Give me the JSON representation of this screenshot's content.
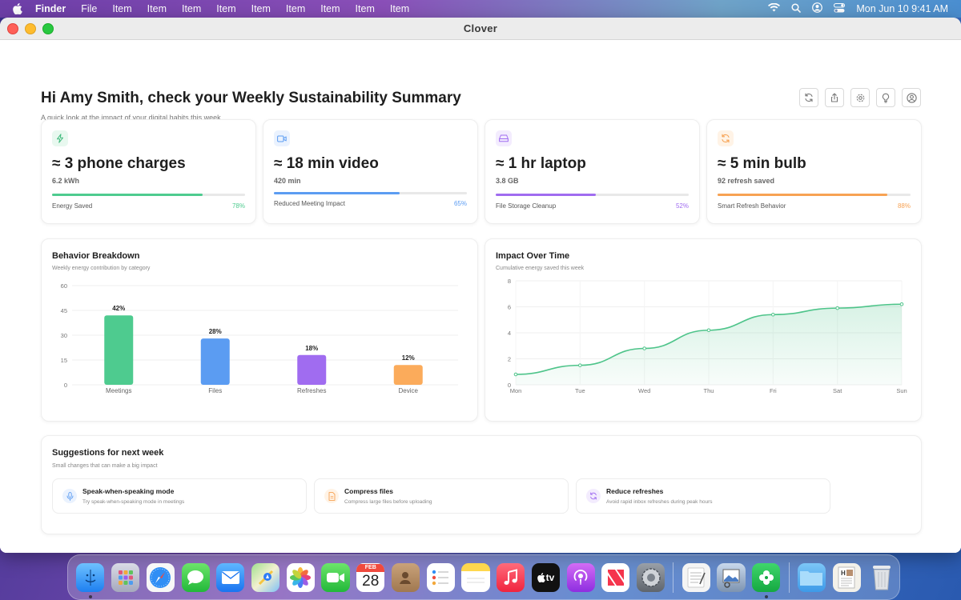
{
  "menubar": {
    "app": "Finder",
    "items": [
      "File",
      "Item",
      "Item",
      "Item",
      "Item",
      "Item",
      "Item",
      "Item",
      "Item",
      "Item"
    ],
    "clock": "Mon Jun 10  9:41 AM"
  },
  "window": {
    "title": "Clover"
  },
  "header": {
    "title": "Hi Amy Smith, check your Weekly Sustainability Summary",
    "subtitle": "A quick look at the impact of your digital habits this week."
  },
  "stats": [
    {
      "value": "≈ 3 phone charges",
      "sub": "6.2 kWh",
      "label": "Energy Saved",
      "percent": "78%",
      "progress": 0.78,
      "color": "#4ecb8f",
      "icon": "bolt-icon"
    },
    {
      "value": "≈ 18 min video",
      "sub": "420 min",
      "label": "Reduced Meeting Impact",
      "percent": "65%",
      "progress": 0.65,
      "color": "#5b9cf2",
      "icon": "video-icon"
    },
    {
      "value": "≈ 1 hr laptop",
      "sub": "3.8 GB",
      "label": "File Storage Cleanup",
      "percent": "52%",
      "progress": 0.52,
      "color": "#a06cf0",
      "icon": "drive-icon"
    },
    {
      "value": "≈ 5 min bulb",
      "sub": "92 refresh saved",
      "label": "Smart Refresh Behavior",
      "percent": "88%",
      "progress": 0.88,
      "color": "#f7a253",
      "icon": "refresh-icon"
    }
  ],
  "behavior": {
    "title": "Behavior Breakdown",
    "subtitle": "Weekly energy contribution by category"
  },
  "impact": {
    "title": "Impact Over Time",
    "subtitle": "Cumulative energy saved this week"
  },
  "chart_data": [
    {
      "type": "bar",
      "title": "Behavior Breakdown",
      "categories": [
        "Meetings",
        "Files",
        "Refreshes",
        "Device"
      ],
      "values": [
        42,
        28,
        18,
        12
      ],
      "labels": [
        "42%",
        "28%",
        "18%",
        "12%"
      ],
      "colors": [
        "#4ecb8f",
        "#5b9cf2",
        "#a06cf0",
        "#fbab5b"
      ],
      "yticks": [
        "60",
        "45",
        "30",
        "15",
        "0"
      ],
      "ylim": [
        0,
        60
      ],
      "grid": true
    },
    {
      "type": "area",
      "title": "Impact Over Time",
      "x": [
        "Mon",
        "Tue",
        "Wed",
        "Thu",
        "Fri",
        "Sat",
        "Sun"
      ],
      "y": [
        0.8,
        1.5,
        2.8,
        4.2,
        5.4,
        5.9,
        6.2
      ],
      "yticks": [
        "8",
        "6",
        "4",
        "2",
        "0"
      ],
      "ylim": [
        0,
        8
      ],
      "color": "#4ec48a",
      "grid": true
    }
  ],
  "suggestions": {
    "title": "Suggestions for next week",
    "subtitle": "Small changes that can make a big impact",
    "items": [
      {
        "title": "Speak-when-speaking mode",
        "desc": "Try speak-when-speaking mode in meetings",
        "icon": "microphone-icon",
        "color": "#5b9cf2",
        "bg": "#eaf2fe"
      },
      {
        "title": "Compress files",
        "desc": "Compress large files before uploading",
        "icon": "file-icon",
        "color": "#f7a253",
        "bg": "#fff3e6"
      },
      {
        "title": "Reduce refreshes",
        "desc": "Avoid rapid inbox refreshes during peak hours",
        "icon": "refresh-icon",
        "color": "#a06cf0",
        "bg": "#f3ecfe"
      }
    ]
  },
  "dock": {
    "calendar_month": "FEB",
    "calendar_day": "28",
    "tv_label": "tv"
  }
}
